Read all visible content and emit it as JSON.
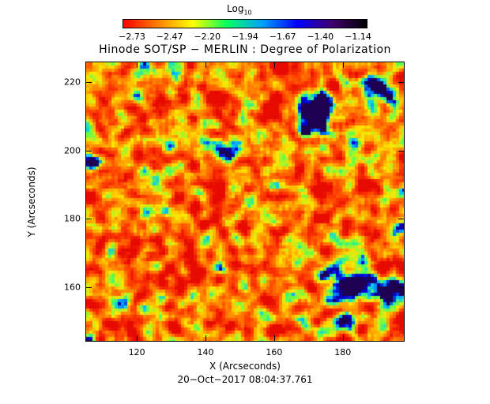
{
  "colorbar": {
    "title": "Log",
    "title_subscript": "10",
    "tick_labels": [
      "−2.73",
      "−2.47",
      "−2.20",
      "−1.94",
      "−1.67",
      "−1.40",
      "−1.14"
    ],
    "colors": [
      "#ff0000",
      "#ff8000",
      "#ffff00",
      "#00ff60",
      "#00a0ff",
      "#0000ff",
      "#400070",
      "#000000"
    ]
  },
  "plot": {
    "title": "Hinode SOT/SP − MERLIN : Degree of Polarization",
    "xlabel": "X (Arcseconds)",
    "ylabel": "Y (Arcseconds)",
    "x_ticks": [
      "120",
      "140",
      "160",
      "180"
    ],
    "y_ticks": [
      "160",
      "180",
      "200",
      "220"
    ],
    "x_range": [
      105,
      198
    ],
    "y_range": [
      144,
      226
    ],
    "timestamp": "20−Oct−2017 08:04:37.761"
  }
}
